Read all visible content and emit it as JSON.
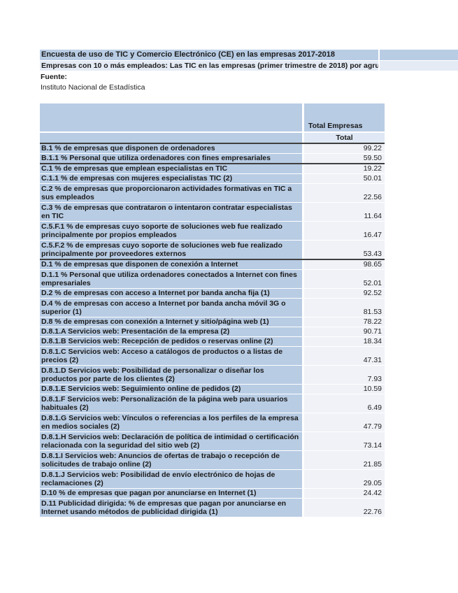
{
  "page": {
    "title": "Encuesta de uso de TIC y Comercio Electrónico (CE) en las empresas 2017-2018",
    "subtitle": "Empresas con 10 o más empleados: Las TIC en las empresas (primer trimestre de 2018) por agru",
    "source_label": "Fuente:",
    "source_name": "Instituto Nacional de Estadística"
  },
  "table": {
    "column_header": "Total Empresas",
    "column_subheader": "Total",
    "groups": [
      {
        "name": "B",
        "rows": [
          {
            "label": "B.1 % de empresas que disponen de ordenadores",
            "value": "99.22",
            "lines": 1
          },
          {
            "label": "B.1.1 % Personal que utiliza ordenadores con fines empresariales",
            "value": "59.50",
            "lines": 1
          }
        ]
      },
      {
        "name": "C",
        "rows": [
          {
            "label": "C.1 % de empresas que emplean especialistas en TIC",
            "value": "19.22",
            "lines": 1
          },
          {
            "label": "C.1.1 % de empresas con mujeres especialistas TIC (2)",
            "value": "50.01",
            "lines": 1
          },
          {
            "label": "C.2 % de empresas que proporcionaron actividades formativas en TIC a sus empleados",
            "value": "22.56",
            "lines": 2
          },
          {
            "label": "C.3 % de empresas que contrataron o intentaron contratar especialistas en TIC",
            "value": "11.64",
            "lines": 2
          },
          {
            "label": "C.5.F.1 % de empresas cuyo soporte de soluciones web fue realizado principalmente por propios empleados",
            "value": "16.47",
            "lines": 2
          },
          {
            "label": "C.5.F.2 % de empresas cuyo soporte de soluciones web fue realizado principalmente por proveedores externos",
            "value": "53.43",
            "lines": 2
          }
        ]
      },
      {
        "name": "D",
        "rows": [
          {
            "label": "D.1 % de empresas que disponen de conexión a Internet",
            "value": "98.65",
            "lines": 1
          },
          {
            "label": "D.1.1 % Personal que utiliza ordenadores conectados a Internet con fines empresariales",
            "value": "52.01",
            "lines": 2
          },
          {
            "label": "D.2 % de empresas con acceso a Internet por banda ancha fija (1)",
            "value": "92.52",
            "lines": 1
          },
          {
            "label": "D.4 % de empresas con acceso a Internet por banda ancha móvil 3G o superior (1)",
            "value": "81.53",
            "lines": 2
          },
          {
            "label": "D.8 % de empresas con conexión a Internet y sitio/página web (1)",
            "value": "78.22",
            "lines": 1
          },
          {
            "label": "D.8.1.A Servicios web: Presentación de la empresa (2)",
            "value": "90.71",
            "lines": 1
          },
          {
            "label": "D.8.1.B Servicios web: Recepción de pedidos o reservas online (2)",
            "value": "18.34",
            "lines": 1
          },
          {
            "label": "D.8.1.C Servicios web: Acceso a catálogos de productos o a listas de precios (2)",
            "value": "47.31",
            "lines": 2
          },
          {
            "label": "D.8.1.D Servicios web: Posibilidad de personalizar o diseñar los productos por parte de los clientes (2)",
            "value": "7.93",
            "lines": 2
          },
          {
            "label": "D.8.1.E Servicios web: Seguimiento online de pedidos (2)",
            "value": "10.59",
            "lines": 1
          },
          {
            "label": "D.8.1.F Servicios web: Personalización de la página web para usuarios habituales (2)",
            "value": "6.49",
            "lines": 2
          },
          {
            "label": "D.8.1.G Servicios web: Vínculos o referencias a los perfiles de la empresa en medios sociales (2)",
            "value": "47.79",
            "lines": 2
          },
          {
            "label": "D.8.1.H Servicios web: Declaración de política de intimidad o certificación relacionada con la seguridad del sitio web (2)",
            "value": "73.14",
            "lines": 2
          },
          {
            "label": "D.8.1.I Servicios web: Anuncios de ofertas de trabajo o recepción de solicitudes de trabajo online (2)",
            "value": "21.85",
            "lines": 2
          },
          {
            "label": "D.8.1.J Servicios web: Posibilidad de envío electrónico de hojas de reclamaciones (2)",
            "value": "29.05",
            "lines": 2
          },
          {
            "label": "D.10 % de empresas que pagan por anunciarse en Internet (1)",
            "value": "24.42",
            "lines": 1
          },
          {
            "label": "D.11 Publicidad dirigida: % de empresas que pagan por anunciarse en Internet usando métodos de publicidad dirigida (1)",
            "value": "22.76",
            "lines": 2
          }
        ]
      }
    ]
  },
  "colors": {
    "band_blue": "#b8cce4",
    "band_pale": "#e4ebf5",
    "subheader_pale": "#dfe8f4",
    "value_cell": "#f0f2f7",
    "rule_dark": "#404040"
  }
}
